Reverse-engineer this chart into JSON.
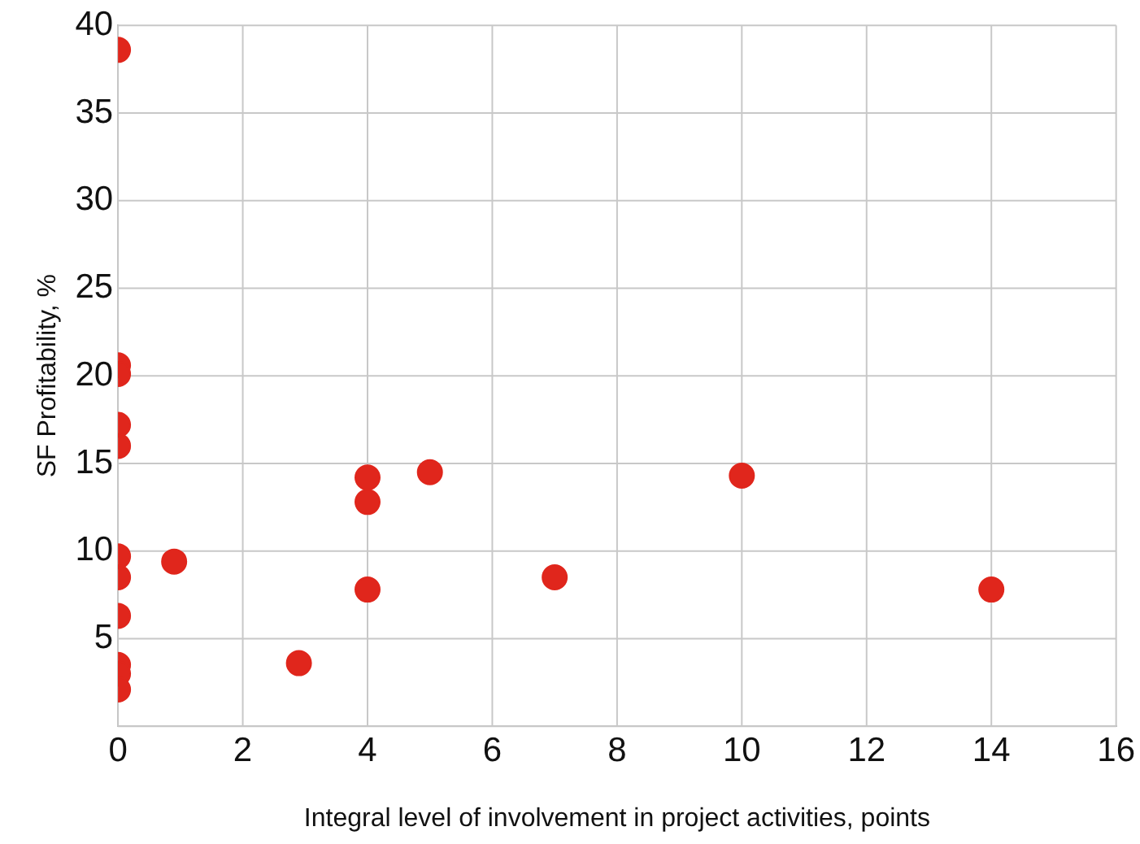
{
  "chart_data": {
    "type": "scatter",
    "xlabel": "Integral level of involvement in project activities, points",
    "ylabel": "SF Profitability, %",
    "x": [
      0,
      0,
      0,
      0,
      0,
      0,
      0,
      0,
      0,
      0,
      0,
      0.9,
      2.9,
      4,
      4,
      4,
      5,
      7,
      10,
      14
    ],
    "series": [
      {
        "color": "#e0261c",
        "values": [
          38.6,
          20.6,
          20.1,
          17.2,
          16.0,
          9.7,
          8.5,
          6.3,
          3.5,
          3.0,
          2.1,
          9.4,
          3.6,
          14.2,
          12.8,
          7.8,
          14.5,
          8.5,
          14.3,
          7.8
        ]
      }
    ],
    "xlim": [
      0,
      16
    ],
    "xticks": [
      0,
      2,
      4,
      6,
      8,
      10,
      12,
      14,
      16
    ],
    "ylim": [
      0,
      40
    ],
    "yticks": [
      {
        "value": 0,
        "label": null
      },
      5,
      10,
      15,
      20,
      25,
      30,
      35,
      40
    ],
    "grid": true,
    "legend": false,
    "marker": "circle"
  }
}
